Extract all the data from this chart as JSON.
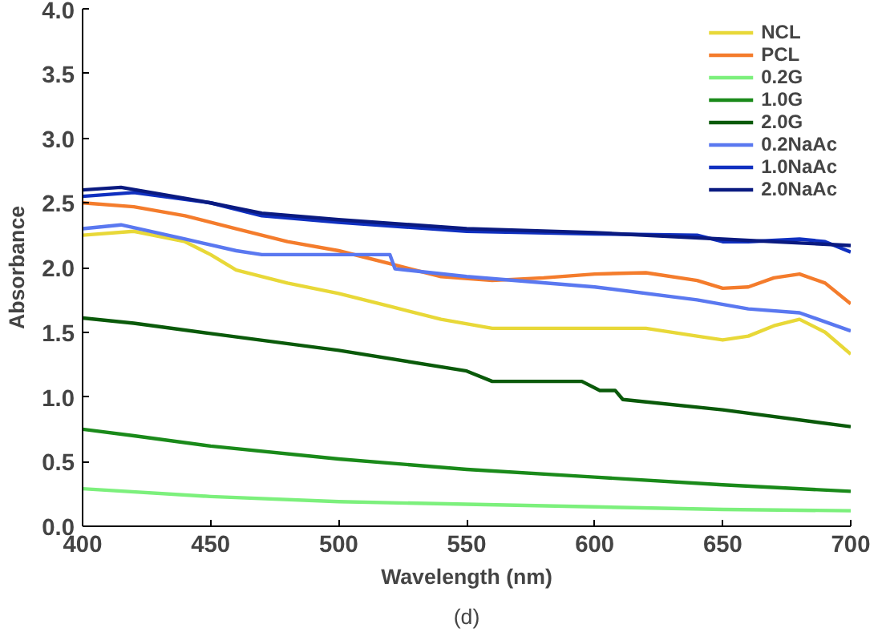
{
  "chart_data": {
    "type": "line",
    "xlabel": "Wavelength (nm)",
    "ylabel": "Absorbance",
    "annotations": [
      "(d)"
    ],
    "xlim": [
      400,
      700
    ],
    "ylim": [
      0,
      4
    ],
    "xticks": [
      400,
      450,
      500,
      550,
      600,
      650,
      700
    ],
    "yticks": [
      {
        "value": 0,
        "label": "0.0"
      },
      {
        "value": 0.5,
        "label": "0.5"
      },
      {
        "value": 1,
        "label": "1.0"
      },
      {
        "value": 1.5,
        "label": "1.5"
      },
      {
        "value": 2,
        "label": "2.0"
      },
      {
        "value": 2.5,
        "label": "2.5"
      },
      {
        "value": 3,
        "label": "3.0"
      },
      {
        "value": 3.5,
        "label": "3.5"
      },
      {
        "value": 4,
        "label": "4.0"
      }
    ],
    "grid": false,
    "legend": "top right",
    "line_style": "solid",
    "marker": "none",
    "series": [
      {
        "name": "NCL",
        "color": "#e8d838",
        "x": [
          400,
          420,
          440,
          450,
          460,
          480,
          500,
          520,
          540,
          560,
          580,
          600,
          620,
          640,
          650,
          660,
          670,
          680,
          690,
          700
        ],
        "values": [
          2.25,
          2.28,
          2.2,
          2.1,
          1.98,
          1.88,
          1.8,
          1.7,
          1.6,
          1.53,
          1.53,
          1.53,
          1.53,
          1.47,
          1.44,
          1.47,
          1.55,
          1.6,
          1.5,
          1.33
        ]
      },
      {
        "name": "PCL",
        "color": "#f47c2c",
        "x": [
          400,
          420,
          440,
          460,
          480,
          500,
          520,
          540,
          560,
          580,
          600,
          620,
          640,
          650,
          660,
          670,
          680,
          690,
          700
        ],
        "values": [
          2.5,
          2.47,
          2.4,
          2.3,
          2.2,
          2.13,
          2.03,
          1.93,
          1.9,
          1.92,
          1.95,
          1.96,
          1.9,
          1.84,
          1.85,
          1.92,
          1.95,
          1.88,
          1.72
        ]
      },
      {
        "name": "0.2G",
        "color": "#7cf07c",
        "x": [
          400,
          450,
          500,
          550,
          600,
          650,
          700
        ],
        "values": [
          0.29,
          0.23,
          0.19,
          0.17,
          0.15,
          0.13,
          0.12
        ]
      },
      {
        "name": "1.0G",
        "color": "#1a8a1a",
        "x": [
          400,
          420,
          450,
          500,
          550,
          600,
          650,
          700
        ],
        "values": [
          0.75,
          0.7,
          0.62,
          0.52,
          0.44,
          0.38,
          0.32,
          0.27
        ]
      },
      {
        "name": "2.0G",
        "color": "#0a5a0a",
        "x": [
          400,
          420,
          450,
          500,
          550,
          560,
          595,
          602,
          608,
          611,
          650,
          700
        ],
        "values": [
          1.61,
          1.57,
          1.49,
          1.36,
          1.2,
          1.12,
          1.12,
          1.05,
          1.05,
          0.98,
          0.9,
          0.77
        ]
      },
      {
        "name": "0.2NaAc",
        "color": "#5a78f0",
        "x": [
          400,
          415,
          440,
          460,
          470,
          520,
          522,
          550,
          600,
          640,
          660,
          680,
          700
        ],
        "values": [
          2.3,
          2.33,
          2.22,
          2.13,
          2.1,
          2.1,
          1.99,
          1.93,
          1.85,
          1.75,
          1.68,
          1.65,
          1.51
        ]
      },
      {
        "name": "1.0NaAc",
        "color": "#1030c0",
        "x": [
          400,
          420,
          450,
          470,
          500,
          550,
          600,
          640,
          650,
          660,
          680,
          690,
          700
        ],
        "values": [
          2.55,
          2.58,
          2.5,
          2.4,
          2.35,
          2.28,
          2.26,
          2.25,
          2.2,
          2.2,
          2.22,
          2.2,
          2.12
        ]
      },
      {
        "name": "2.0NaAc",
        "color": "#0a1a80",
        "x": [
          400,
          415,
          450,
          470,
          500,
          550,
          600,
          650,
          700
        ],
        "values": [
          2.6,
          2.62,
          2.5,
          2.42,
          2.37,
          2.3,
          2.27,
          2.22,
          2.17
        ]
      }
    ]
  }
}
